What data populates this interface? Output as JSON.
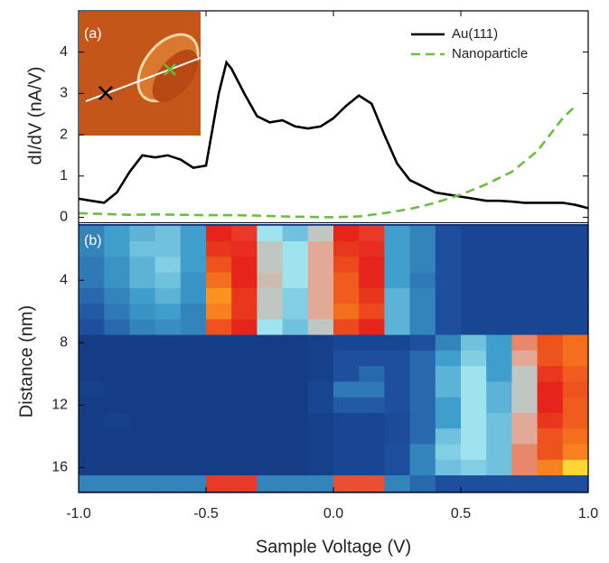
{
  "chart_data": [
    {
      "type": "line",
      "ylabel": "dI/dV (nA/V)",
      "annotation": "(a)",
      "legend": "upper right",
      "xlim": [
        -1.0,
        1.0
      ],
      "ylim": [
        -0.1,
        5
      ],
      "yticks": [
        0,
        1,
        2,
        3,
        4
      ],
      "series": [
        {
          "name": "Au(111)",
          "color": "#000000",
          "dash": "solid",
          "x": [
            -1.0,
            -0.95,
            -0.9,
            -0.85,
            -0.8,
            -0.75,
            -0.7,
            -0.65,
            -0.6,
            -0.55,
            -0.5,
            -0.45,
            -0.42,
            -0.4,
            -0.35,
            -0.3,
            -0.25,
            -0.2,
            -0.15,
            -0.1,
            -0.05,
            0.0,
            0.05,
            0.1,
            0.15,
            0.2,
            0.25,
            0.3,
            0.35,
            0.4,
            0.45,
            0.5,
            0.55,
            0.6,
            0.65,
            0.7,
            0.75,
            0.8,
            0.85,
            0.9,
            0.95,
            1.0
          ],
          "values": [
            0.45,
            0.4,
            0.35,
            0.6,
            1.1,
            1.5,
            1.45,
            1.5,
            1.4,
            1.2,
            1.25,
            3.0,
            3.75,
            3.6,
            3.0,
            2.45,
            2.3,
            2.35,
            2.2,
            2.15,
            2.2,
            2.4,
            2.7,
            2.95,
            2.75,
            2.0,
            1.3,
            0.9,
            0.75,
            0.6,
            0.55,
            0.5,
            0.45,
            0.4,
            0.4,
            0.38,
            0.35,
            0.35,
            0.35,
            0.35,
            0.3,
            0.22
          ]
        },
        {
          "name": "Nanoparticle",
          "color": "#6abf3f",
          "dash": "dashed",
          "x": [
            -1.0,
            -0.9,
            -0.8,
            -0.7,
            -0.6,
            -0.5,
            -0.4,
            -0.3,
            -0.2,
            -0.1,
            0.0,
            0.1,
            0.2,
            0.3,
            0.4,
            0.5,
            0.6,
            0.7,
            0.8,
            0.9,
            0.95
          ],
          "values": [
            0.1,
            0.08,
            0.06,
            0.07,
            0.06,
            0.05,
            0.05,
            0.04,
            0.02,
            0.01,
            0.0,
            0.02,
            0.1,
            0.2,
            0.35,
            0.55,
            0.8,
            1.1,
            1.6,
            2.4,
            2.7
          ]
        }
      ]
    },
    {
      "type": "heatmap",
      "ylabel": "Distance (nm)",
      "xlabel": "Sample Voltage (V)",
      "annotation": "(b)",
      "xlim": [
        -1.0,
        1.0
      ],
      "ylim": [
        17.6,
        0.4
      ],
      "xticks": [
        {
          "value": -1.0,
          "label": "-1.0"
        },
        -0.5,
        {
          "value": 0.0,
          "label": "0.0"
        },
        0.5,
        {
          "value": 1.0,
          "label": "1.0"
        }
      ],
      "yticks": [
        4,
        8,
        12,
        16
      ],
      "x": [
        -0.95,
        -0.85,
        -0.75,
        -0.65,
        -0.55,
        -0.45,
        -0.35,
        -0.25,
        -0.15,
        -0.05,
        0.05,
        0.15,
        0.25,
        0.35,
        0.45,
        0.55,
        0.65,
        0.75,
        0.85,
        0.95
      ],
      "y": [
        1,
        2,
        3,
        4,
        5,
        6,
        7,
        8,
        9,
        10,
        11,
        12,
        13,
        14,
        15,
        16,
        17
      ],
      "z": [
        [
          0.3,
          0.35,
          0.38,
          0.4,
          0.35,
          0.8,
          0.75,
          0.45,
          0.4,
          0.5,
          0.8,
          0.75,
          0.35,
          0.3,
          0.2,
          0.15,
          0.15,
          0.15,
          0.15,
          0.15
        ],
        [
          0.3,
          0.35,
          0.4,
          0.4,
          0.35,
          0.82,
          0.78,
          0.5,
          0.45,
          0.55,
          0.82,
          0.78,
          0.35,
          0.3,
          0.2,
          0.15,
          0.15,
          0.15,
          0.15,
          0.15
        ],
        [
          0.28,
          0.33,
          0.38,
          0.42,
          0.35,
          0.85,
          0.8,
          0.5,
          0.45,
          0.55,
          0.84,
          0.8,
          0.35,
          0.3,
          0.2,
          0.15,
          0.15,
          0.15,
          0.15,
          0.15
        ],
        [
          0.28,
          0.33,
          0.38,
          0.4,
          0.33,
          0.88,
          0.8,
          0.52,
          0.45,
          0.55,
          0.86,
          0.8,
          0.35,
          0.28,
          0.2,
          0.15,
          0.15,
          0.15,
          0.15,
          0.15
        ],
        [
          0.25,
          0.3,
          0.35,
          0.38,
          0.33,
          0.92,
          0.82,
          0.5,
          0.42,
          0.55,
          0.86,
          0.82,
          0.38,
          0.3,
          0.2,
          0.15,
          0.15,
          0.15,
          0.15,
          0.15
        ],
        [
          0.22,
          0.28,
          0.33,
          0.35,
          0.3,
          0.9,
          0.82,
          0.5,
          0.42,
          0.55,
          0.88,
          0.84,
          0.38,
          0.3,
          0.2,
          0.15,
          0.15,
          0.15,
          0.15,
          0.15
        ],
        [
          0.2,
          0.25,
          0.3,
          0.32,
          0.3,
          0.85,
          0.8,
          0.45,
          0.4,
          0.5,
          0.84,
          0.8,
          0.38,
          0.3,
          0.2,
          0.15,
          0.15,
          0.15,
          0.15,
          0.15
        ],
        [
          0.1,
          0.1,
          0.1,
          0.1,
          0.1,
          0.1,
          0.1,
          0.1,
          0.1,
          0.12,
          0.15,
          0.15,
          0.15,
          0.2,
          0.3,
          0.4,
          0.35,
          0.6,
          0.85,
          0.88
        ],
        [
          0.1,
          0.1,
          0.1,
          0.1,
          0.1,
          0.1,
          0.1,
          0.1,
          0.1,
          0.12,
          0.2,
          0.2,
          0.2,
          0.25,
          0.35,
          0.42,
          0.35,
          0.55,
          0.85,
          0.88
        ],
        [
          0.1,
          0.1,
          0.1,
          0.1,
          0.1,
          0.1,
          0.1,
          0.1,
          0.1,
          0.12,
          0.2,
          0.25,
          0.2,
          0.25,
          0.38,
          0.45,
          0.35,
          0.5,
          0.82,
          0.86
        ],
        [
          0.12,
          0.1,
          0.1,
          0.1,
          0.1,
          0.1,
          0.1,
          0.1,
          0.1,
          0.15,
          0.28,
          0.28,
          0.2,
          0.25,
          0.38,
          0.45,
          0.38,
          0.5,
          0.8,
          0.85
        ],
        [
          0.1,
          0.1,
          0.1,
          0.1,
          0.1,
          0.1,
          0.1,
          0.1,
          0.1,
          0.15,
          0.22,
          0.22,
          0.2,
          0.25,
          0.35,
          0.45,
          0.38,
          0.5,
          0.8,
          0.86
        ],
        [
          0.1,
          0.12,
          0.1,
          0.1,
          0.1,
          0.1,
          0.1,
          0.1,
          0.1,
          0.12,
          0.15,
          0.15,
          0.18,
          0.25,
          0.35,
          0.45,
          0.4,
          0.55,
          0.82,
          0.86
        ],
        [
          0.1,
          0.1,
          0.1,
          0.1,
          0.1,
          0.1,
          0.1,
          0.1,
          0.1,
          0.12,
          0.15,
          0.15,
          0.18,
          0.25,
          0.4,
          0.45,
          0.4,
          0.55,
          0.85,
          0.88
        ],
        [
          0.1,
          0.1,
          0.1,
          0.1,
          0.1,
          0.1,
          0.1,
          0.1,
          0.1,
          0.12,
          0.15,
          0.15,
          0.2,
          0.3,
          0.42,
          0.45,
          0.4,
          0.6,
          0.85,
          0.9
        ],
        [
          0.1,
          0.1,
          0.1,
          0.1,
          0.1,
          0.1,
          0.1,
          0.1,
          0.1,
          0.12,
          0.15,
          0.15,
          0.2,
          0.3,
          0.4,
          0.42,
          0.4,
          0.6,
          0.9,
          0.98
        ],
        [
          0.3,
          0.3,
          0.3,
          0.3,
          0.3,
          0.75,
          0.75,
          0.3,
          0.3,
          0.3,
          0.7,
          0.7,
          0.3,
          0.25,
          0.2,
          0.2,
          0.2,
          0.2,
          0.2,
          0.2
        ]
      ]
    }
  ]
}
